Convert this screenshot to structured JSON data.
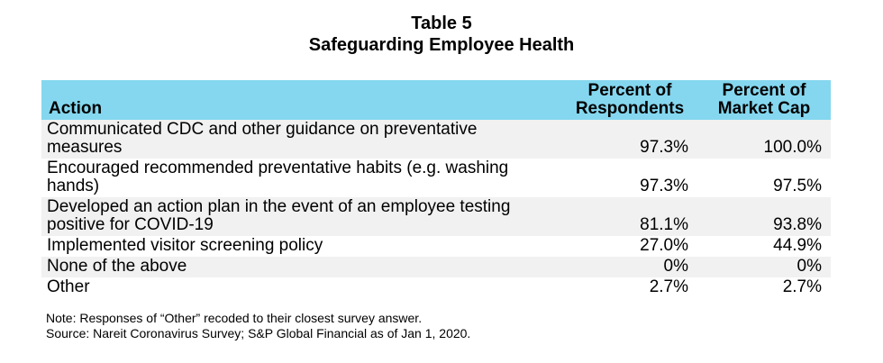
{
  "title": "Table 5",
  "subtitle": "Safeguarding Employee Health",
  "columns": [
    "Action",
    "Percent of Respondents",
    "Percent of Market Cap"
  ],
  "header": {
    "col1": "Action",
    "col2_line1": "Percent of",
    "col2_line2": "Respondents",
    "col3_line1": "Percent of",
    "col3_line2": "Market Cap"
  },
  "rows": [
    {
      "action_line1": "Communicated CDC and other guidance on preventative",
      "action_line2": "measures",
      "respondents": "97.3%",
      "market_cap": "100.0%"
    },
    {
      "action_line1": "Encouraged recommended preventative habits (e.g. washing",
      "action_line2": "hands)",
      "respondents": "97.3%",
      "market_cap": "97.5%"
    },
    {
      "action_line1": "Developed an action plan in the event of an employee testing",
      "action_line2": "positive for COVID-19",
      "respondents": "81.1%",
      "market_cap": "93.8%"
    },
    {
      "action_line1": "Implemented visitor screening policy",
      "action_line2": "",
      "respondents": "27.0%",
      "market_cap": "44.9%"
    },
    {
      "action_line1": "None of the above",
      "action_line2": "",
      "respondents": "0%",
      "market_cap": "0%"
    },
    {
      "action_line1": "Other",
      "action_line2": "",
      "respondents": "2.7%",
      "market_cap": "2.7%"
    }
  ],
  "notes": {
    "note": "Note: Responses of “Other” recoded to their closest survey answer.",
    "source": "Source: Nareit Coronavirus Survey; S&P Global Financial as of Jan 1, 2020."
  },
  "colors": {
    "header_bg": "#84d7ef",
    "row_shade": "#f1f1f1"
  }
}
